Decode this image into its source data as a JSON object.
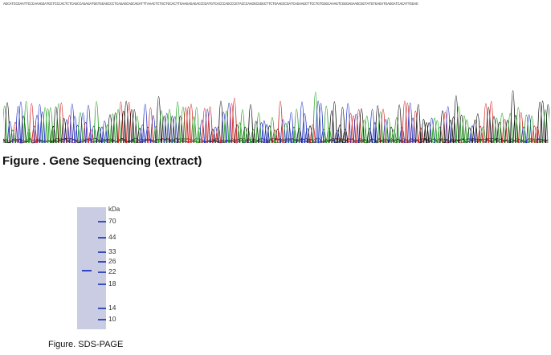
{
  "sequencing": {
    "sequence_text": "AGCATCCGAATTCCCAAAGGATGCTCCCACTCTCAGCCAGAGATGGTGGAGCCCTCAGAGCAGCAGATTTAAACTCTGCTGCACTTGAAGAGAGACCCGATGTCACCCAGCCCGTACCCAAGGCGGGCTTCTGAAGCCGATCAGAAGCTTCCTGTGGGCAAAGTCGGGAGAAGCGGTATGTGAGATGAGGATCACATTGGAG",
    "colors": {
      "A": "#20a020",
      "C": "#2030c0",
      "G": "#111111",
      "T": "#d02020"
    },
    "caption": "Figure . Gene Sequencing (extract)"
  },
  "sds_page": {
    "unit": "kDa",
    "markers": [
      "70",
      "44",
      "33",
      "26",
      "22",
      "18",
      "14",
      "10"
    ],
    "caption": "Figure. SDS-PAGE"
  }
}
